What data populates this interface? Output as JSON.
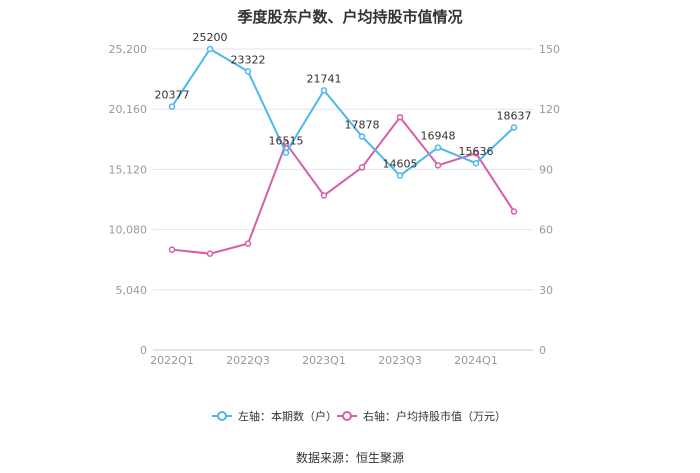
{
  "chart_data": {
    "type": "line",
    "title": "季度股东户数、户均持股市值情况",
    "categories": [
      "2022Q1",
      "2022Q2",
      "2022Q3",
      "2022Q4",
      "2023Q1",
      "2023Q2",
      "2023Q3",
      "2023Q4",
      "2024Q1",
      "2024Q2"
    ],
    "x_tick_labels": [
      "2022Q1",
      "2022Q3",
      "2023Q1",
      "2023Q3",
      "2024Q1"
    ],
    "y_left": {
      "min": 0,
      "max": 25200,
      "ticks": [
        "0",
        "5,040",
        "10,080",
        "15,120",
        "20,160",
        "25,200"
      ]
    },
    "y_right": {
      "min": 0,
      "max": 150,
      "ticks": [
        "0",
        "30",
        "60",
        "90",
        "120",
        "150"
      ]
    },
    "series": [
      {
        "name": "左轴：本期数（户）",
        "axis": "left",
        "color": "#4db8ec",
        "values": [
          20377,
          25200,
          23322,
          16515,
          21741,
          17878,
          14605,
          16948,
          15636,
          18637
        ],
        "labels": [
          "20377",
          "25200",
          "23322",
          "16515",
          "21741",
          "17878",
          "14605",
          "16948",
          "15636",
          "18637"
        ]
      },
      {
        "name": "右轴：户均持股市值（万元）",
        "axis": "right",
        "color": "#d75fa6",
        "values": [
          50,
          48,
          53,
          103,
          77,
          91,
          116,
          92,
          98,
          69
        ]
      }
    ],
    "grid": true,
    "legend_position": "bottom"
  },
  "source": "数据来源：恒生聚源"
}
